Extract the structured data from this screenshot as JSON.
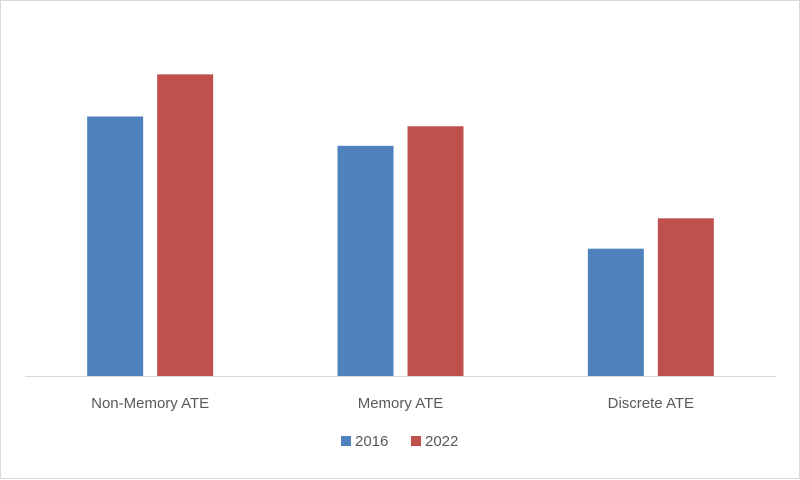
{
  "chart_data": {
    "type": "bar",
    "categories": [
      "Non-Memory ATE",
      "Memory ATE",
      "Discrete ATE"
    ],
    "series": [
      {
        "name": "2016",
        "values": [
          265,
          235,
          130
        ],
        "color": "#4f81bd"
      },
      {
        "name": "2022",
        "values": [
          308,
          255,
          161
        ],
        "color": "#c0504d"
      }
    ],
    "ylim": [
      0,
      340
    ],
    "grid": false,
    "legend_position": "bottom",
    "axis_color": "#d9d9d9"
  }
}
